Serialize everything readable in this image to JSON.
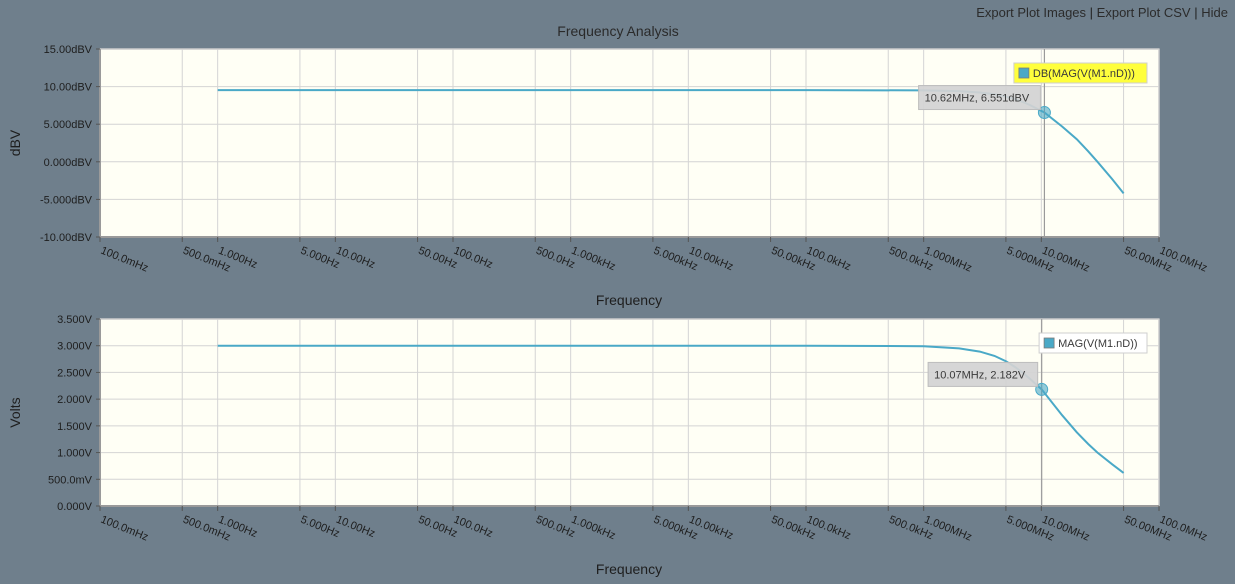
{
  "toolbar": {
    "export_images": "Export Plot Images",
    "export_csv": "Export Plot CSV",
    "hide": "Hide",
    "separator": "|"
  },
  "colors": {
    "background": "#6f7f8c",
    "plot_bg": "#fffff5",
    "series": "#4aa9c7",
    "legend_highlight": "#ffff3c",
    "tooltip_bg": "#d2d2d2"
  },
  "chart_data": [
    {
      "type": "line",
      "title": "Frequency Analysis",
      "xlabel": "Frequency",
      "ylabel": "dBV",
      "x_scale": "log",
      "xlim": [
        0.1,
        100000000
      ],
      "ylim": [
        -10,
        15
      ],
      "grid": true,
      "x_ticks": [
        0.1,
        0.5,
        1,
        5,
        10,
        50,
        100,
        500,
        1000,
        5000,
        10000,
        50000,
        100000,
        500000,
        1000000,
        5000000,
        10000000,
        50000000,
        100000000
      ],
      "x_tick_labels": [
        "100.0mHz",
        "500.0mHz",
        "1.000Hz",
        "5.000Hz",
        "10.00Hz",
        "50.00Hz",
        "100.0Hz",
        "500.0Hz",
        "1.000kHz",
        "5.000kHz",
        "10.00kHz",
        "50.00kHz",
        "100.0kHz",
        "500.0kHz",
        "1.000MHz",
        "5.000MHz",
        "10.00MHz",
        "50.00MHz",
        "100.0MHz"
      ],
      "y_ticks": [
        15,
        10,
        5,
        0,
        -5,
        -10
      ],
      "y_tick_labels": [
        "15.00dBV",
        "10.00dBV",
        "5.000dBV",
        "0.000dBV",
        "-5.000dBV",
        "-10.00dBV"
      ],
      "legend_placement": "top-right",
      "legend_highlighted": true,
      "series": [
        {
          "name": "DB(MAG(V(M1.nD)))",
          "x": [
            1,
            10,
            100,
            1000,
            10000,
            100000,
            1000000,
            2000000,
            3000000,
            4000000,
            5000000,
            6000000,
            7000000,
            8000000,
            9000000,
            10620000,
            15000000,
            20000000,
            25000000,
            30000000,
            40000000,
            50000000
          ],
          "y": [
            9.54,
            9.54,
            9.54,
            9.54,
            9.54,
            9.54,
            9.5,
            9.4,
            9.22,
            8.98,
            8.67,
            8.32,
            7.94,
            7.55,
            7.14,
            6.551,
            4.7,
            3.0,
            1.4,
            0.0,
            -2.3,
            -4.2
          ]
        }
      ],
      "tooltip": {
        "x": 10620000,
        "y": 6.551,
        "text": "10.62MHz, 6.551dBV"
      }
    },
    {
      "type": "line",
      "xlabel": "Frequency",
      "ylabel": "Volts",
      "x_scale": "log",
      "xlim": [
        0.1,
        100000000
      ],
      "ylim": [
        0,
        3.5
      ],
      "grid": true,
      "x_ticks": [
        0.1,
        0.5,
        1,
        5,
        10,
        50,
        100,
        500,
        1000,
        5000,
        10000,
        50000,
        100000,
        500000,
        1000000,
        5000000,
        10000000,
        50000000,
        100000000
      ],
      "x_tick_labels": [
        "100.0mHz",
        "500.0mHz",
        "1.000Hz",
        "5.000Hz",
        "10.00Hz",
        "50.00Hz",
        "100.0Hz",
        "500.0Hz",
        "1.000kHz",
        "5.000kHz",
        "10.00kHz",
        "50.00kHz",
        "100.0kHz",
        "500.0kHz",
        "1.000MHz",
        "5.000MHz",
        "10.00MHz",
        "50.00MHz",
        "100.0MHz"
      ],
      "y_ticks": [
        3.5,
        3.0,
        2.5,
        2.0,
        1.5,
        1.0,
        0.5,
        0.0
      ],
      "y_tick_labels": [
        "3.500V",
        "3.000V",
        "2.500V",
        "2.000V",
        "1.500V",
        "1.000V",
        "500.0mV",
        "0.000V"
      ],
      "legend_placement": "top-right",
      "legend_highlighted": false,
      "series": [
        {
          "name": "MAG(V(M1.nD))",
          "x": [
            1,
            10,
            100,
            1000,
            10000,
            100000,
            1000000,
            2000000,
            3000000,
            4000000,
            5000000,
            6000000,
            7000000,
            8000000,
            9000000,
            10070000,
            15000000,
            20000000,
            25000000,
            30000000,
            40000000,
            50000000
          ],
          "y": [
            3.0,
            3.0,
            3.0,
            3.0,
            3.0,
            3.0,
            2.99,
            2.95,
            2.89,
            2.81,
            2.71,
            2.6,
            2.49,
            2.38,
            2.28,
            2.182,
            1.7,
            1.38,
            1.16,
            1.0,
            0.78,
            0.62
          ]
        }
      ],
      "tooltip": {
        "x": 10070000,
        "y": 2.182,
        "text": "10.07MHz, 2.182V"
      }
    }
  ]
}
